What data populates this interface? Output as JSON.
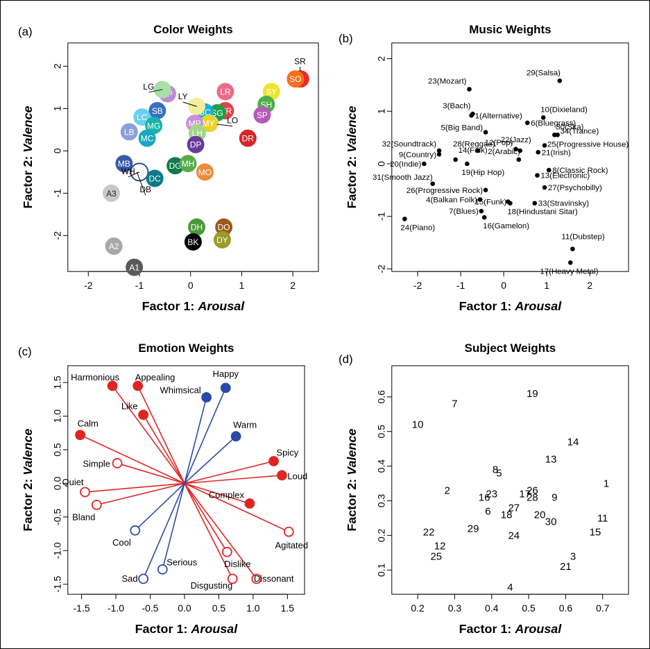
{
  "chart_data": [
    {
      "panel": "(a)",
      "type": "scatter",
      "title": "Color Weights",
      "xlabel_prefix": "Factor 1: ",
      "xlabel_em": "Arousal",
      "ylabel_prefix": "Factor 2: ",
      "ylabel_em": "Valence",
      "xlim": [
        -2.4,
        2.5
      ],
      "ylim": [
        -2.85,
        2.55
      ],
      "xticks": [
        -2,
        -1,
        0,
        1,
        2
      ],
      "yticks": [
        -2,
        -1,
        0,
        1,
        2
      ],
      "points": [
        {
          "label": "SY",
          "x": 1.58,
          "y": 1.4,
          "color": "#f0e22a"
        },
        {
          "label": "SR",
          "x": 2.15,
          "y": 1.7,
          "color": "#ee2a24",
          "label_outside": true,
          "lx": 2.14,
          "ly": 2.05
        },
        {
          "label": "SO",
          "x": 2.05,
          "y": 1.7,
          "color": "#f4701e"
        },
        {
          "label": "LR",
          "x": 0.68,
          "y": 1.4,
          "color": "#ee6a86"
        },
        {
          "label": "SH",
          "x": 1.48,
          "y": 1.1,
          "color": "#4aae4a"
        },
        {
          "label": "SP",
          "x": 1.4,
          "y": 0.85,
          "color": "#b65ab8"
        },
        {
          "label": "DR",
          "x": 1.12,
          "y": 0.3,
          "color": "#d8252a"
        },
        {
          "label": "MR",
          "x": 0.68,
          "y": 0.95,
          "color": "#e0424a"
        },
        {
          "label": "SG",
          "x": 0.52,
          "y": 0.9,
          "color": "#1ca04a"
        },
        {
          "label": "SC",
          "x": 0.28,
          "y": 0.92,
          "color": "#18aed8"
        },
        {
          "label": "LY",
          "x": 0.12,
          "y": 1.05,
          "color": "#f2ee9a",
          "label_outside": true,
          "lx": -0.15,
          "ly": 1.22
        },
        {
          "label": "LO",
          "x": 0.38,
          "y": 0.65,
          "color": "#f8c89a",
          "label_outside": true,
          "lx": 0.82,
          "ly": 0.65
        },
        {
          "label": "MY",
          "x": 0.35,
          "y": 0.65,
          "color": "#e6d42a"
        },
        {
          "label": "MP",
          "x": 0.08,
          "y": 0.65,
          "color": "#c890d8"
        },
        {
          "label": "LH",
          "x": 0.13,
          "y": 0.42,
          "color": "#a0d888"
        },
        {
          "label": "LP",
          "x": -0.45,
          "y": 1.35,
          "color": "#c08ad0"
        },
        {
          "label": "LG",
          "x": -0.55,
          "y": 1.45,
          "color": "#a8e0a8",
          "label_outside": true,
          "lx": -0.82,
          "ly": 1.45
        },
        {
          "label": "SB",
          "x": -0.65,
          "y": 0.95,
          "color": "#3a70c0"
        },
        {
          "label": "LC",
          "x": -0.95,
          "y": 0.8,
          "color": "#6ad0ee"
        },
        {
          "label": "MG",
          "x": -0.72,
          "y": 0.6,
          "color": "#18b4a8"
        },
        {
          "label": "LB",
          "x": -1.2,
          "y": 0.45,
          "color": "#8aa0d8"
        },
        {
          "label": "MC",
          "x": -0.85,
          "y": 0.3,
          "color": "#18a8c0"
        },
        {
          "label": "MB",
          "x": -1.3,
          "y": -0.3,
          "color": "#3858a8"
        },
        {
          "label": "WH",
          "x": -1.0,
          "y": -0.5,
          "color": "#ffffff",
          "outline": "#2a4a9a",
          "label_outside": true,
          "lx": -1.22,
          "ly": -0.55
        },
        {
          "label": "DB",
          "x": -1.05,
          "y": -0.5,
          "color": "#ffffff",
          "outline": "#2a4a9a",
          "label_outside": true,
          "lx": -0.88,
          "ly": -0.98,
          "dot": false
        },
        {
          "label": "DC",
          "x": -0.7,
          "y": -0.65,
          "color": "#0a7a8a"
        },
        {
          "label": "DG",
          "x": -0.3,
          "y": -0.35,
          "color": "#127a4a"
        },
        {
          "label": "MH",
          "x": -0.05,
          "y": -0.3,
          "color": "#5aaa4a"
        },
        {
          "label": "DP",
          "x": 0.1,
          "y": 0.15,
          "color": "#6a3a9a"
        },
        {
          "label": "MO",
          "x": 0.28,
          "y": -0.5,
          "color": "#ee8a3a"
        },
        {
          "label": "A3",
          "x": -1.55,
          "y": -1.0,
          "color": "#c8c8c8",
          "text_color": "#222"
        },
        {
          "label": "A2",
          "x": -1.5,
          "y": -2.25,
          "color": "#a8a8a8"
        },
        {
          "label": "A1",
          "x": -1.1,
          "y": -2.75,
          "color": "#5a5a5a"
        },
        {
          "label": "DH",
          "x": 0.12,
          "y": -1.8,
          "color": "#4a9a3a"
        },
        {
          "label": "BK",
          "x": 0.05,
          "y": -2.15,
          "color": "#000000"
        },
        {
          "label": "DO",
          "x": 0.65,
          "y": -1.8,
          "color": "#9a5a1a"
        },
        {
          "label": "DY",
          "x": 0.62,
          "y": -2.1,
          "color": "#9a9a2a"
        }
      ]
    },
    {
      "panel": "(b)",
      "type": "scatter",
      "title": "Music Weights",
      "xlabel_prefix": "Factor 1: ",
      "xlabel_em": "Arousal",
      "ylabel_prefix": "Factor 2: ",
      "ylabel_em": "Valence",
      "xlim": [
        -2.6,
        2.9
      ],
      "ylim": [
        -2.05,
        2.3
      ],
      "xticks": [
        -2,
        -1,
        0,
        1,
        2
      ],
      "yticks": [
        -2,
        -1,
        0,
        1,
        2
      ],
      "points": [
        {
          "label": "1(Alternative)",
          "x": -0.75,
          "y": 0.92,
          "anchor": "start"
        },
        {
          "label": "2(Arabic)",
          "x": 0.35,
          "y": 0.08,
          "anchor": "end",
          "dx": 2,
          "dy": -8
        },
        {
          "label": "3(Bach)",
          "x": -0.72,
          "y": 0.95,
          "anchor": "end",
          "dx": -3,
          "dy": -8
        },
        {
          "label": "4(Balkan Folk)",
          "x": -0.55,
          "y": -0.68,
          "anchor": "end",
          "dx": -4
        },
        {
          "label": "5(Big Band)",
          "x": -0.42,
          "y": 0.6,
          "anchor": "end",
          "dx": -4,
          "dy": -3
        },
        {
          "label": "6(Bluegrass)",
          "x": 0.55,
          "y": 0.78,
          "anchor": "start"
        },
        {
          "label": "7(Blues)",
          "x": -0.52,
          "y": -0.9,
          "anchor": "end",
          "dx": -4,
          "dy": 4
        },
        {
          "label": "8(Classic Rock)",
          "x": 1.05,
          "y": -0.12,
          "anchor": "start"
        },
        {
          "label": "9(Country)",
          "x": -1.5,
          "y": 0.18,
          "anchor": "end",
          "dx": -4
        },
        {
          "label": "10(Dixieland)",
          "x": 0.92,
          "y": 0.88,
          "anchor": "start",
          "dx": -4,
          "dy": -8
        },
        {
          "label": "11(Dubstep)",
          "x": 1.6,
          "y": -1.62,
          "anchor": "start",
          "dx": -16,
          "dy": -14
        },
        {
          "label": "12(Pop)",
          "x": 0.28,
          "y": 0.28,
          "anchor": "end",
          "dx": -4,
          "dy": -6
        },
        {
          "label": "13(Electronic)",
          "x": 0.78,
          "y": -0.22,
          "anchor": "start"
        },
        {
          "label": "14(Folk)",
          "x": -1.12,
          "y": 0.08,
          "anchor": "start",
          "dx": 4,
          "dy": -10
        },
        {
          "label": "15(Funk)",
          "x": 0.1,
          "y": -0.72,
          "anchor": "end",
          "dx": -2,
          "dy": 4
        },
        {
          "label": "16(Gamelon)",
          "x": -0.45,
          "y": -1.02,
          "anchor": "start",
          "dx": -2,
          "dy": 16
        },
        {
          "label": "17(Heavy Metal)",
          "x": 1.55,
          "y": -1.88,
          "anchor": "start",
          "dx": -44,
          "dy": 16
        },
        {
          "label": "18(Hindustani Sitar)",
          "x": 0.15,
          "y": -0.75,
          "anchor": "start",
          "dx": -4,
          "dy": 16
        },
        {
          "label": "19(Hip Hop)",
          "x": -0.85,
          "y": 0.0,
          "anchor": "start",
          "dx": -8,
          "dy": 16
        },
        {
          "label": "20(Indie)",
          "x": -1.85,
          "y": 0.0,
          "anchor": "end",
          "dx": -4
        },
        {
          "label": "21(Irish)",
          "x": 0.8,
          "y": 0.22,
          "anchor": "start"
        },
        {
          "label": "22(Jazz)",
          "x": 0.38,
          "y": 0.25,
          "anchor": "start",
          "dx": -28,
          "dy": -12
        },
        {
          "label": "23(Mozart)",
          "x": -0.8,
          "y": 1.42,
          "anchor": "end",
          "dx": -4,
          "dy": -8
        },
        {
          "label": "24(Piano)",
          "x": -2.3,
          "y": -1.05,
          "anchor": "start",
          "dx": -6,
          "dy": 16
        },
        {
          "label": "25(Progressive House)",
          "x": 0.95,
          "y": 0.35,
          "anchor": "start",
          "dx": 4,
          "dy": 2
        },
        {
          "label": "26(Progressive Rock)",
          "x": -0.42,
          "y": -0.5,
          "anchor": "end",
          "dx": -4,
          "dy": 4
        },
        {
          "label": "27(Psychobilly)",
          "x": 0.95,
          "y": -0.45,
          "anchor": "start"
        },
        {
          "label": "28(Reggae)",
          "x": -0.6,
          "y": 0.25,
          "anchor": "start",
          "dx": -36,
          "dy": -6
        },
        {
          "label": "29(Salsa)",
          "x": 1.3,
          "y": 1.58,
          "anchor": "start",
          "dx": -48,
          "dy": -8
        },
        {
          "label": "30(Ska)",
          "x": 1.18,
          "y": 0.55,
          "anchor": "start",
          "dx": 2,
          "dy": -8
        },
        {
          "label": "31(Smooth Jazz)",
          "x": -1.65,
          "y": -0.38,
          "anchor": "end",
          "dx": 0,
          "dy": -6
        },
        {
          "label": "32(Soundtrack)",
          "x": -1.5,
          "y": 0.25,
          "anchor": "end",
          "dx": -4,
          "dy": -6
        },
        {
          "label": "33(Stravinsky)",
          "x": 0.72,
          "y": -0.75,
          "anchor": "start"
        },
        {
          "label": "34(Trance)",
          "x": 1.25,
          "y": 0.55,
          "anchor": "start",
          "dx": 4,
          "dy": -2
        }
      ]
    },
    {
      "panel": "(c)",
      "type": "biplot",
      "title": "Emotion Weights",
      "xlabel_prefix": "Factor 1: ",
      "xlabel_em": "Arousal",
      "ylabel_prefix": "Factor 2: ",
      "ylabel_em": "Valence",
      "xlim": [
        -1.7,
        1.75
      ],
      "ylim": [
        -1.65,
        1.75
      ],
      "xticks": [
        -1.5,
        -1.0,
        -0.5,
        0.0,
        0.5,
        1.0,
        1.5
      ],
      "yticks": [
        -1.5,
        -1.0,
        -0.5,
        0.0,
        0.5,
        1.0,
        1.5
      ],
      "colors": {
        "red": "#e02424",
        "blue": "#2a4aa8"
      },
      "points": [
        {
          "label": "Harmonious",
          "x": -1.05,
          "y": 1.45,
          "group": "red",
          "filled": true,
          "anchor": "end",
          "dx": 10,
          "dy": -8
        },
        {
          "label": "Appealing",
          "x": -0.68,
          "y": 1.45,
          "group": "red",
          "filled": true,
          "anchor": "start",
          "dx": -4,
          "dy": -8
        },
        {
          "label": "Like",
          "x": -0.6,
          "y": 1.02,
          "group": "red",
          "filled": true,
          "anchor": "end",
          "dx": -8,
          "dy": -8
        },
        {
          "label": "Calm",
          "x": -1.52,
          "y": 0.72,
          "group": "red",
          "filled": true,
          "anchor": "start",
          "dx": -4,
          "dy": -12
        },
        {
          "label": "Simple",
          "x": -0.98,
          "y": 0.3,
          "group": "red",
          "filled": false,
          "anchor": "end",
          "dx": -10,
          "dy": 5
        },
        {
          "label": "Quiet",
          "x": -1.45,
          "y": -0.13,
          "group": "red",
          "filled": false,
          "anchor": "end",
          "dx": -2,
          "dy": -10
        },
        {
          "label": "Bland",
          "x": -1.28,
          "y": -0.32,
          "group": "red",
          "filled": false,
          "anchor": "end",
          "dx": -2,
          "dy": 22
        },
        {
          "label": "Spicy",
          "x": 1.3,
          "y": 0.33,
          "group": "red",
          "filled": true,
          "anchor": "start",
          "dx": 4,
          "dy": -8
        },
        {
          "label": "Loud",
          "x": 1.42,
          "y": 0.12,
          "group": "red",
          "filled": true,
          "anchor": "start",
          "dx": 8,
          "dy": 6
        },
        {
          "label": "Complex",
          "x": 0.95,
          "y": -0.3,
          "group": "red",
          "filled": true,
          "anchor": "end",
          "dx": -8,
          "dy": -8
        },
        {
          "label": "Agitated",
          "x": 1.52,
          "y": -0.72,
          "group": "red",
          "filled": false,
          "anchor": "middle",
          "dx": 4,
          "dy": 24
        },
        {
          "label": "Dislike",
          "x": 0.62,
          "y": -1.02,
          "group": "red",
          "filled": false,
          "anchor": "start",
          "dx": -4,
          "dy": 22
        },
        {
          "label": "Disgusting",
          "x": 0.7,
          "y": -1.42,
          "group": "red",
          "filled": false,
          "anchor": "end",
          "dx": 0,
          "dy": 14
        },
        {
          "label": "Dissonant",
          "x": 1.05,
          "y": -1.42,
          "group": "red",
          "filled": false,
          "anchor": "start",
          "dx": -4,
          "dy": 4
        },
        {
          "label": "Whimsical",
          "x": 0.32,
          "y": 1.28,
          "group": "blue",
          "filled": true,
          "anchor": "end",
          "dx": -8,
          "dy": -6
        },
        {
          "label": "Happy",
          "x": 0.6,
          "y": 1.42,
          "group": "blue",
          "filled": true,
          "anchor": "middle",
          "dx": 0,
          "dy": -16
        },
        {
          "label": "Warm",
          "x": 0.75,
          "y": 0.7,
          "group": "blue",
          "filled": true,
          "anchor": "start",
          "dx": -4,
          "dy": -12
        },
        {
          "label": "Cool",
          "x": -0.72,
          "y": -0.7,
          "group": "blue",
          "filled": false,
          "anchor": "end",
          "dx": -6,
          "dy": 22
        },
        {
          "label": "Serious",
          "x": -0.32,
          "y": -1.28,
          "group": "blue",
          "filled": false,
          "anchor": "start",
          "dx": 6,
          "dy": -6
        },
        {
          "label": "Sad",
          "x": -0.6,
          "y": -1.42,
          "group": "blue",
          "filled": false,
          "anchor": "end",
          "dx": -8,
          "dy": 4
        }
      ]
    },
    {
      "panel": "(d)",
      "type": "scatter",
      "title": "Subject Weights",
      "xlabel_prefix": "Factor 1: ",
      "xlabel_em": "Arousal",
      "ylabel_prefix": "Factor 2: ",
      "ylabel_em": "Valence",
      "xlim": [
        0.13,
        0.77
      ],
      "ylim": [
        0.03,
        0.69
      ],
      "xticks": [
        0.2,
        0.3,
        0.4,
        0.5,
        0.6,
        0.7
      ],
      "yticks": [
        0.1,
        0.2,
        0.3,
        0.4,
        0.5,
        0.6
      ],
      "points": [
        {
          "label": "1",
          "x": 0.71,
          "y": 0.35
        },
        {
          "label": "2",
          "x": 0.28,
          "y": 0.33
        },
        {
          "label": "3",
          "x": 0.62,
          "y": 0.14
        },
        {
          "label": "4",
          "x": 0.45,
          "y": 0.05
        },
        {
          "label": "5",
          "x": 0.42,
          "y": 0.38
        },
        {
          "label": "6",
          "x": 0.39,
          "y": 0.27
        },
        {
          "label": "7",
          "x": 0.3,
          "y": 0.58
        },
        {
          "label": "8",
          "x": 0.41,
          "y": 0.39
        },
        {
          "label": "9",
          "x": 0.57,
          "y": 0.31
        },
        {
          "label": "10",
          "x": 0.2,
          "y": 0.52
        },
        {
          "label": "11",
          "x": 0.7,
          "y": 0.25
        },
        {
          "label": "12",
          "x": 0.26,
          "y": 0.17
        },
        {
          "label": "13",
          "x": 0.56,
          "y": 0.42
        },
        {
          "label": "14",
          "x": 0.62,
          "y": 0.47
        },
        {
          "label": "15",
          "x": 0.68,
          "y": 0.21
        },
        {
          "label": "16",
          "x": 0.38,
          "y": 0.31
        },
        {
          "label": "17",
          "x": 0.49,
          "y": 0.32
        },
        {
          "label": "18",
          "x": 0.44,
          "y": 0.26
        },
        {
          "label": "19",
          "x": 0.51,
          "y": 0.61
        },
        {
          "label": "20",
          "x": 0.53,
          "y": 0.26
        },
        {
          "label": "21",
          "x": 0.6,
          "y": 0.11
        },
        {
          "label": "22",
          "x": 0.23,
          "y": 0.21
        },
        {
          "label": "23",
          "x": 0.4,
          "y": 0.32
        },
        {
          "label": "24",
          "x": 0.46,
          "y": 0.2
        },
        {
          "label": "25",
          "x": 0.25,
          "y": 0.14
        },
        {
          "label": "26",
          "x": 0.51,
          "y": 0.33
        },
        {
          "label": "27",
          "x": 0.46,
          "y": 0.28
        },
        {
          "label": "28",
          "x": 0.51,
          "y": 0.31
        },
        {
          "label": "29",
          "x": 0.35,
          "y": 0.22
        },
        {
          "label": "30",
          "x": 0.56,
          "y": 0.24
        }
      ]
    }
  ]
}
